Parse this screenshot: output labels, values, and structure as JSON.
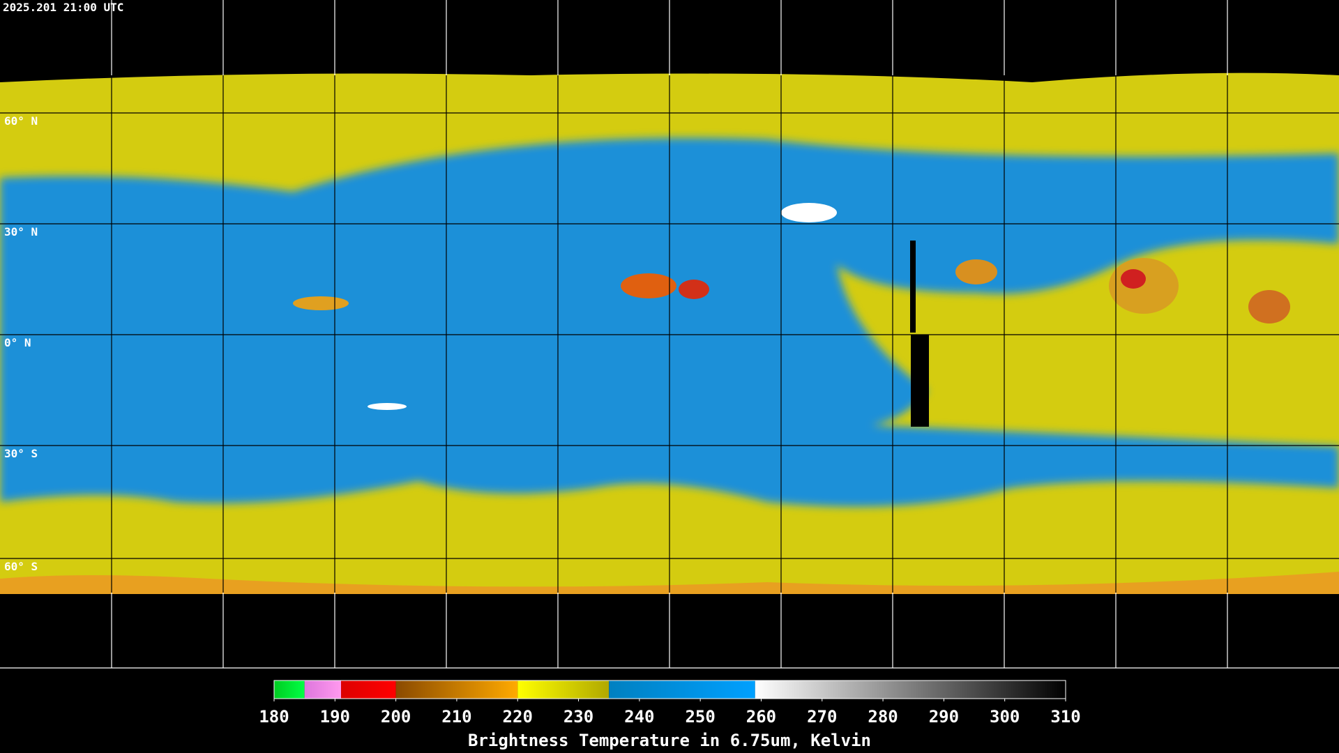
{
  "header": {
    "title": "2025.201 21:00 UTC"
  },
  "map": {
    "lat_labels": [
      "60° N",
      "30° N",
      "0° N",
      "30° S",
      "60° S"
    ]
  },
  "colorbar": {
    "ticks": [
      180,
      190,
      200,
      210,
      220,
      230,
      240,
      250,
      260,
      270,
      280,
      290,
      300,
      310
    ],
    "label": "Brightness Temperature in 6.75um, Kelvin",
    "segments": [
      {
        "from": 180,
        "to": 185,
        "color": "#00cc22",
        "color_end": "#00ff44"
      },
      {
        "from": 185,
        "to": 191,
        "color": "#dd77dd",
        "color_end": "#ff99ee"
      },
      {
        "from": 191,
        "to": 200,
        "color": "#dd0000",
        "color_end": "#ff0000"
      },
      {
        "from": 200,
        "to": 220,
        "color": "#8a4a00",
        "color_end": "#ffaa00"
      },
      {
        "from": 220,
        "to": 235,
        "color": "#ffff00",
        "color_end": "#b0a800"
      },
      {
        "from": 235,
        "to": 259,
        "color": "#0080c0",
        "color_end": "#00a0ff"
      },
      {
        "from": 259,
        "to": 310,
        "color": "#ffffff",
        "color_end": "#000000"
      }
    ]
  }
}
